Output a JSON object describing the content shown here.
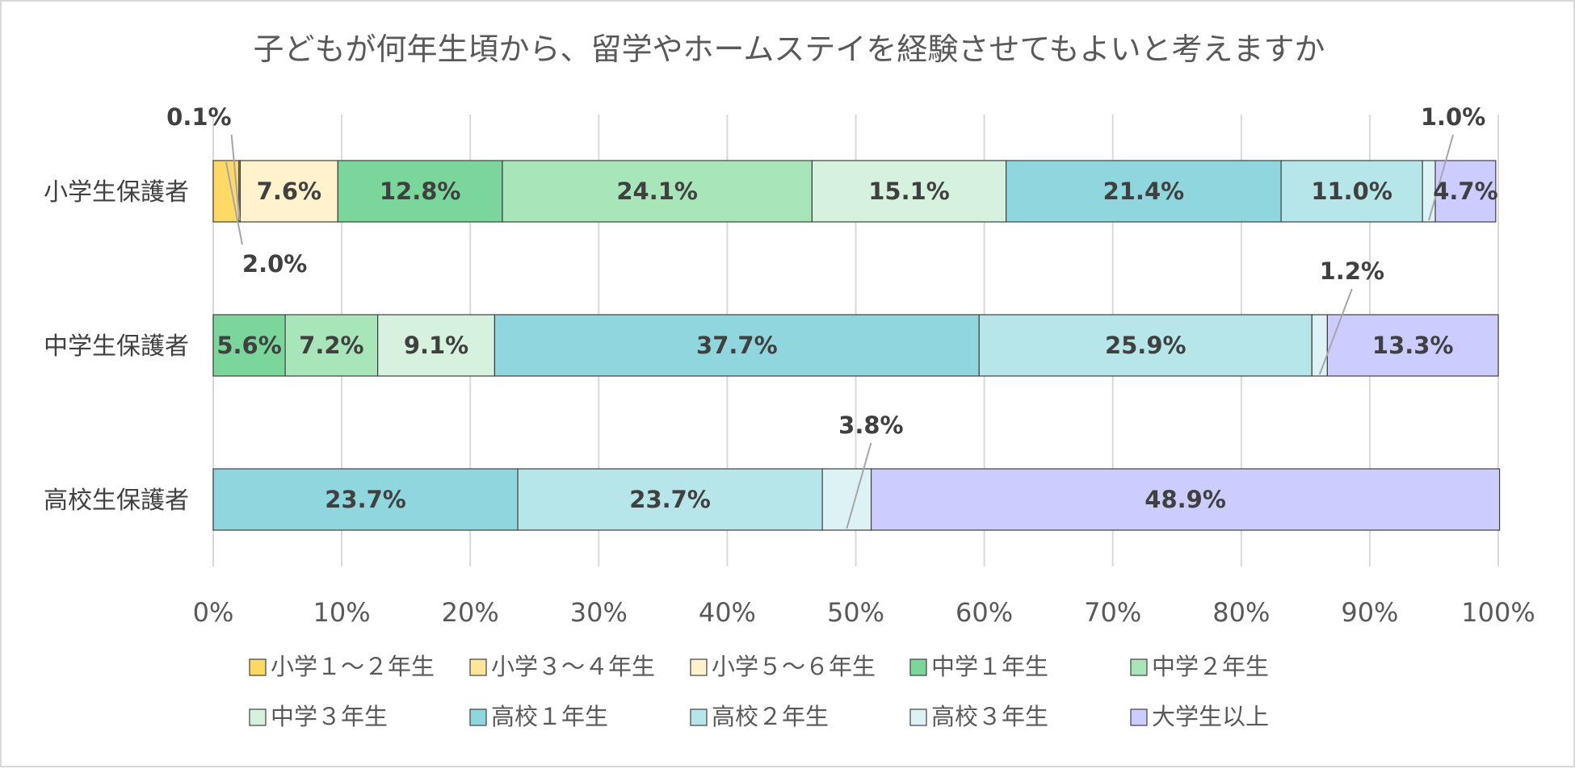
{
  "chart_data": {
    "type": "bar",
    "orientation": "horizontal",
    "stacked": "percent",
    "title": "子どもが何年生頃から、留学やホームステイを経験させてもよいと考えますか",
    "categories": [
      "小学生保護者",
      "中学生保護者",
      "高校生保護者"
    ],
    "series": [
      {
        "name": "小学１～２年生",
        "color": "#ffd966",
        "values": [
          2.0,
          0,
          0
        ]
      },
      {
        "name": "小学３～４年生",
        "color": "#ffe699",
        "values": [
          0.1,
          0,
          0
        ]
      },
      {
        "name": "小学５～６年生",
        "color": "#fff2cc",
        "values": [
          7.6,
          0,
          0
        ]
      },
      {
        "name": "中学１年生",
        "color": "#7ad69a",
        "values": [
          12.8,
          5.6,
          0
        ]
      },
      {
        "name": "中学２年生",
        "color": "#a8e5b9",
        "values": [
          24.1,
          7.2,
          0
        ]
      },
      {
        "name": "中学３年生",
        "color": "#d6f2df",
        "values": [
          15.1,
          9.1,
          0
        ]
      },
      {
        "name": "高校１年生",
        "color": "#8fd6de",
        "values": [
          21.4,
          37.7,
          23.7
        ]
      },
      {
        "name": "高校２年生",
        "color": "#b6e5ea",
        "values": [
          11.0,
          25.9,
          23.7
        ]
      },
      {
        "name": "高校３年生",
        "color": "#dcf2f4",
        "values": [
          1.0,
          1.2,
          3.8
        ]
      },
      {
        "name": "大学生以上",
        "color": "#ccccff",
        "values": [
          4.7,
          13.3,
          48.9
        ]
      }
    ],
    "data_labels": [
      [
        "2.0%",
        "0.1%",
        "7.6%",
        "12.8%",
        "24.1%",
        "15.1%",
        "21.4%",
        "11.0%",
        "1.0%",
        "4.7%"
      ],
      [
        "",
        "",
        "",
        "5.6%",
        "7.2%",
        "9.1%",
        "37.7%",
        "25.9%",
        "1.2%",
        "13.3%"
      ],
      [
        "",
        "",
        "",
        "",
        "",
        "",
        "23.7%",
        "23.7%",
        "3.8%",
        "48.9%"
      ]
    ],
    "xaxis": {
      "ticks": [
        "0%",
        "10%",
        "20%",
        "30%",
        "40%",
        "50%",
        "60%",
        "70%",
        "80%",
        "90%",
        "100%"
      ],
      "range": [
        0,
        100
      ]
    },
    "grid": true,
    "legend_position": "bottom"
  }
}
